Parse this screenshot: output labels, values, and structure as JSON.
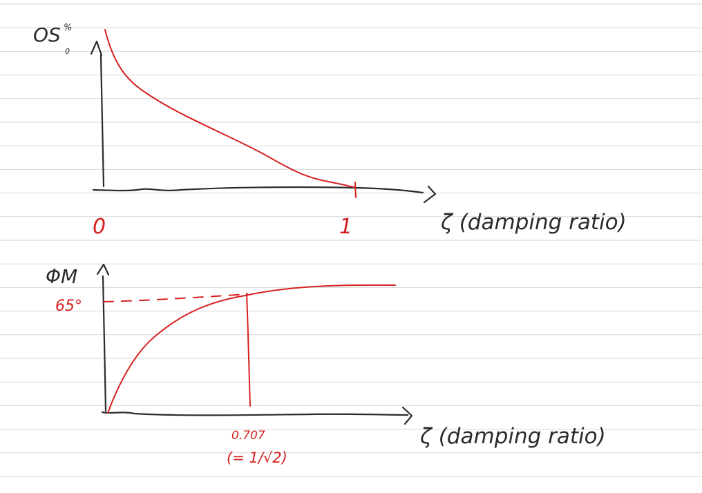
{
  "page": {
    "paper_color": "#ffffff",
    "rule_color": "#d6d6d6",
    "ink_color": "#2b2b2b",
    "red_color": "#d62020"
  },
  "top_plot": {
    "y_label_main": "OS",
    "y_label_sup": "%",
    "y_label_sub": "0",
    "x_tick_0": "0",
    "x_tick_1": "1",
    "x_label": "ζ (damping ratio)"
  },
  "bottom_plot": {
    "y_label": "ΦM",
    "y_marker": "65°",
    "x_marker": "0.707",
    "x_marker_note": "(= 1/√2)",
    "x_label": "ζ (damping ratio)"
  }
}
